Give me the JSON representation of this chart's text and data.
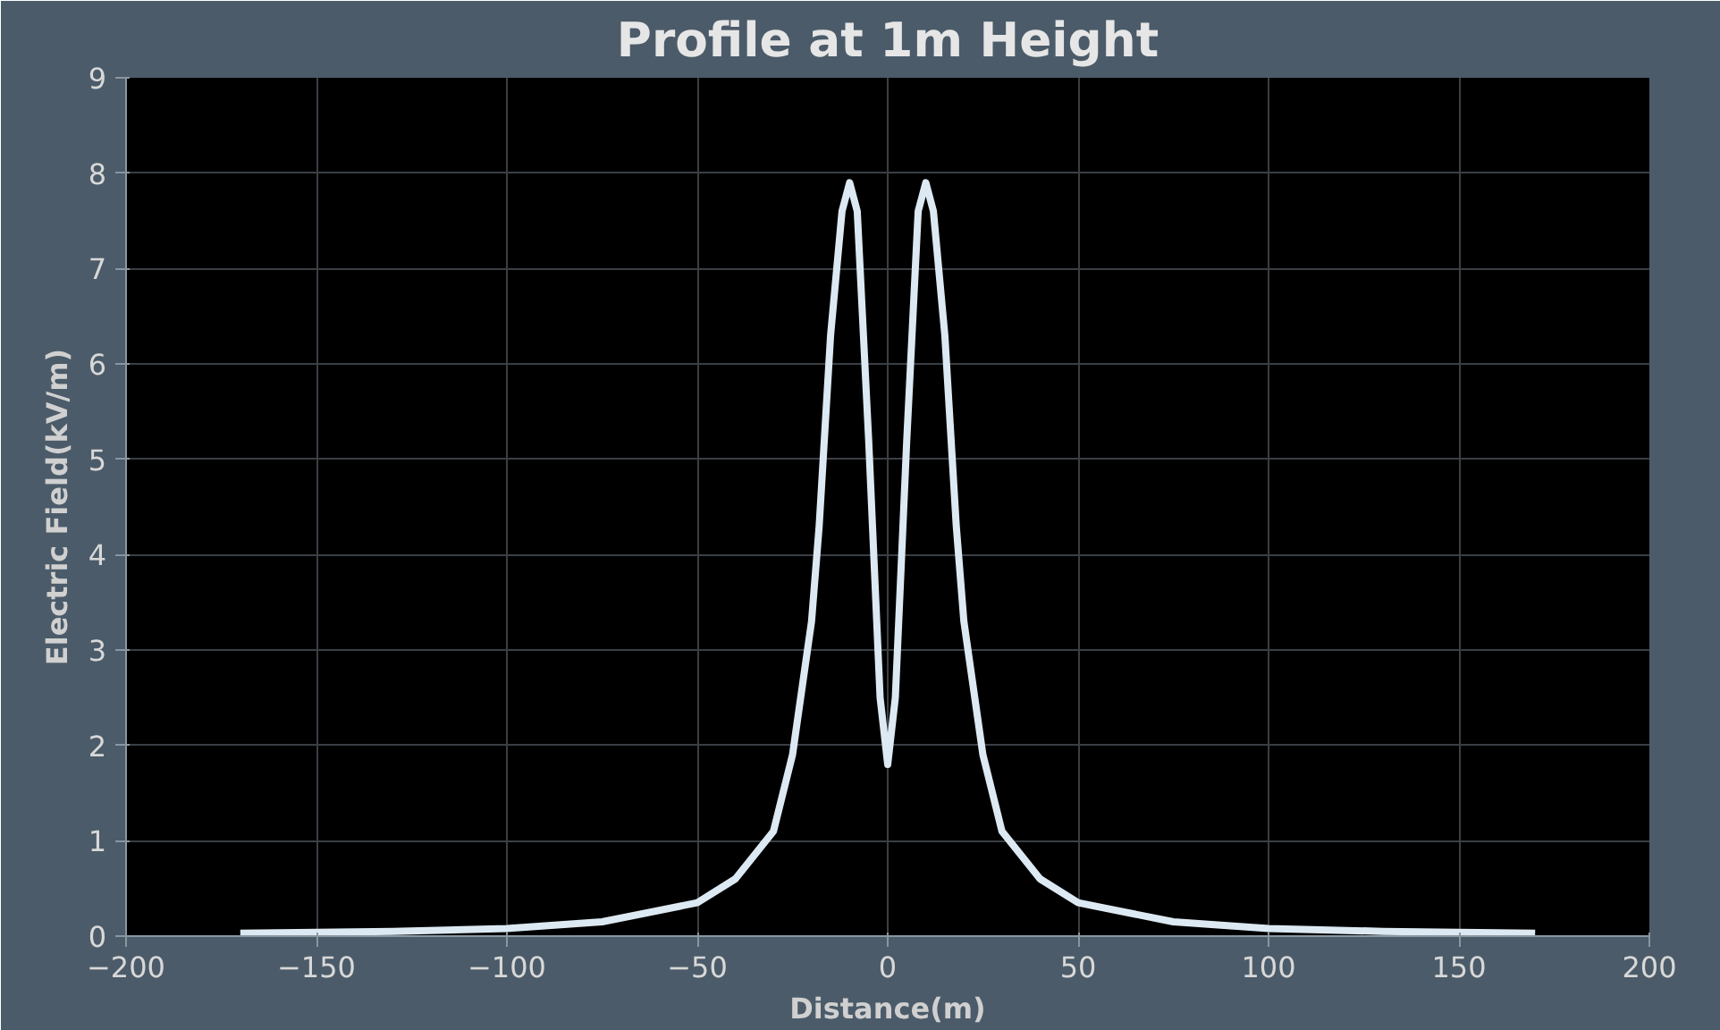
{
  "chart_data": {
    "type": "line",
    "title": "Profile at 1m Height",
    "xlabel": "Distance(m)",
    "ylabel": "Electric Field(kV/m)",
    "xlim": [
      -200,
      200
    ],
    "xticks": [
      -200,
      -150,
      -100,
      -50,
      0,
      50,
      100,
      150,
      200
    ],
    "ylim": [
      0,
      9
    ],
    "yticks": [
      0,
      1,
      2,
      3,
      4,
      5,
      6,
      7,
      8,
      9
    ],
    "grid": true,
    "marker": "none",
    "line_style": "solid",
    "series": [
      {
        "color": "#dce9f2",
        "x": [
          -170,
          -130,
          -100,
          -75,
          -50,
          -40,
          -30,
          -25,
          -20,
          -18,
          -15,
          -12,
          -10,
          -8,
          -5,
          -2,
          0,
          2,
          5,
          8,
          10,
          12,
          15,
          18,
          20,
          25,
          30,
          40,
          50,
          75,
          100,
          130,
          170
        ],
        "values": [
          0.03,
          0.05,
          0.08,
          0.15,
          0.35,
          0.6,
          1.1,
          1.9,
          3.3,
          4.3,
          6.3,
          7.6,
          7.9,
          7.6,
          5.2,
          2.5,
          1.8,
          2.5,
          5.2,
          7.6,
          7.9,
          7.6,
          6.3,
          4.3,
          3.3,
          1.9,
          1.1,
          0.6,
          0.35,
          0.15,
          0.08,
          0.05,
          0.03
        ]
      }
    ]
  }
}
